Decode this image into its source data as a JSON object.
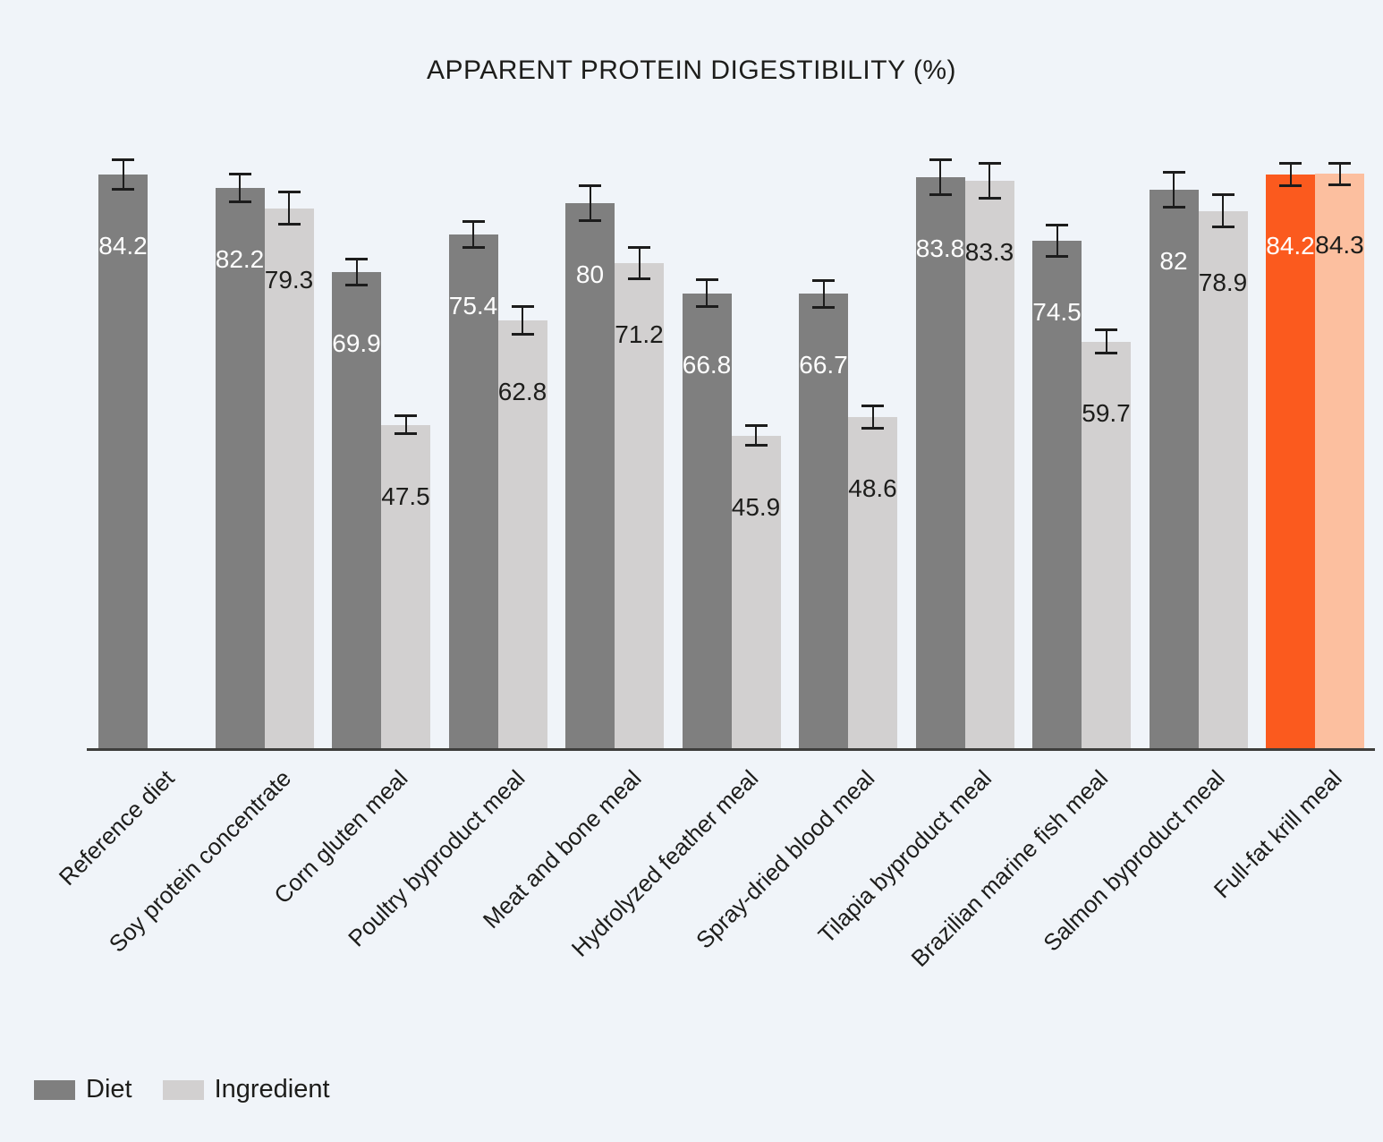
{
  "page": {
    "background": "#f0f4f9",
    "text_color": "#1d1d1b"
  },
  "chart_data": {
    "type": "bar",
    "title": "APPARENT PROTEIN DIGESTIBILITY (%)",
    "categories": [
      "Reference diet",
      "Soy protein concentrate",
      "Corn gluten meal",
      "Poultry byproduct meal",
      "Meat and bone meal",
      "Hydrolyzed feather meal",
      "Spray-dried blood meal",
      "Tilapia byproduct meal",
      "Brazilian marine fish meal",
      "Salmon byproduct meal",
      "Full-fat krill meal"
    ],
    "series": [
      {
        "name": "Diet",
        "color": "#7f7f7f",
        "values": [
          84.2,
          82.2,
          69.9,
          75.4,
          80,
          66.8,
          66.7,
          83.8,
          74.5,
          82,
          84.2
        ],
        "errors": [
          2.2,
          2.1,
          2.0,
          2.0,
          2.6,
          2.0,
          2.0,
          2.6,
          2.4,
          2.6,
          1.7
        ]
      },
      {
        "name": "Ingredient",
        "color": "#d2d0d0",
        "values": [
          null,
          79.3,
          47.5,
          62.8,
          71.2,
          45.9,
          48.6,
          83.3,
          59.7,
          78.9,
          84.3
        ],
        "errors": [
          null,
          2.4,
          1.4,
          2.1,
          2.4,
          1.5,
          1.7,
          2.6,
          1.8,
          2.4,
          1.7
        ]
      }
    ],
    "highlight": {
      "category": "Full-fat krill meal",
      "colors": [
        "#fb5a1e",
        "#fcbf9f"
      ]
    },
    "value_label_colors": [
      "#ffffff",
      "#1d1d1b"
    ],
    "error_bar_color": "#1c1c1c",
    "axis_line_color": "#3e3e3c",
    "ylim": [
      0,
      100
    ],
    "grid": false,
    "y_axis_visible": false,
    "x_tick_rotation_deg": 45,
    "legend_position": "bottom-left"
  }
}
